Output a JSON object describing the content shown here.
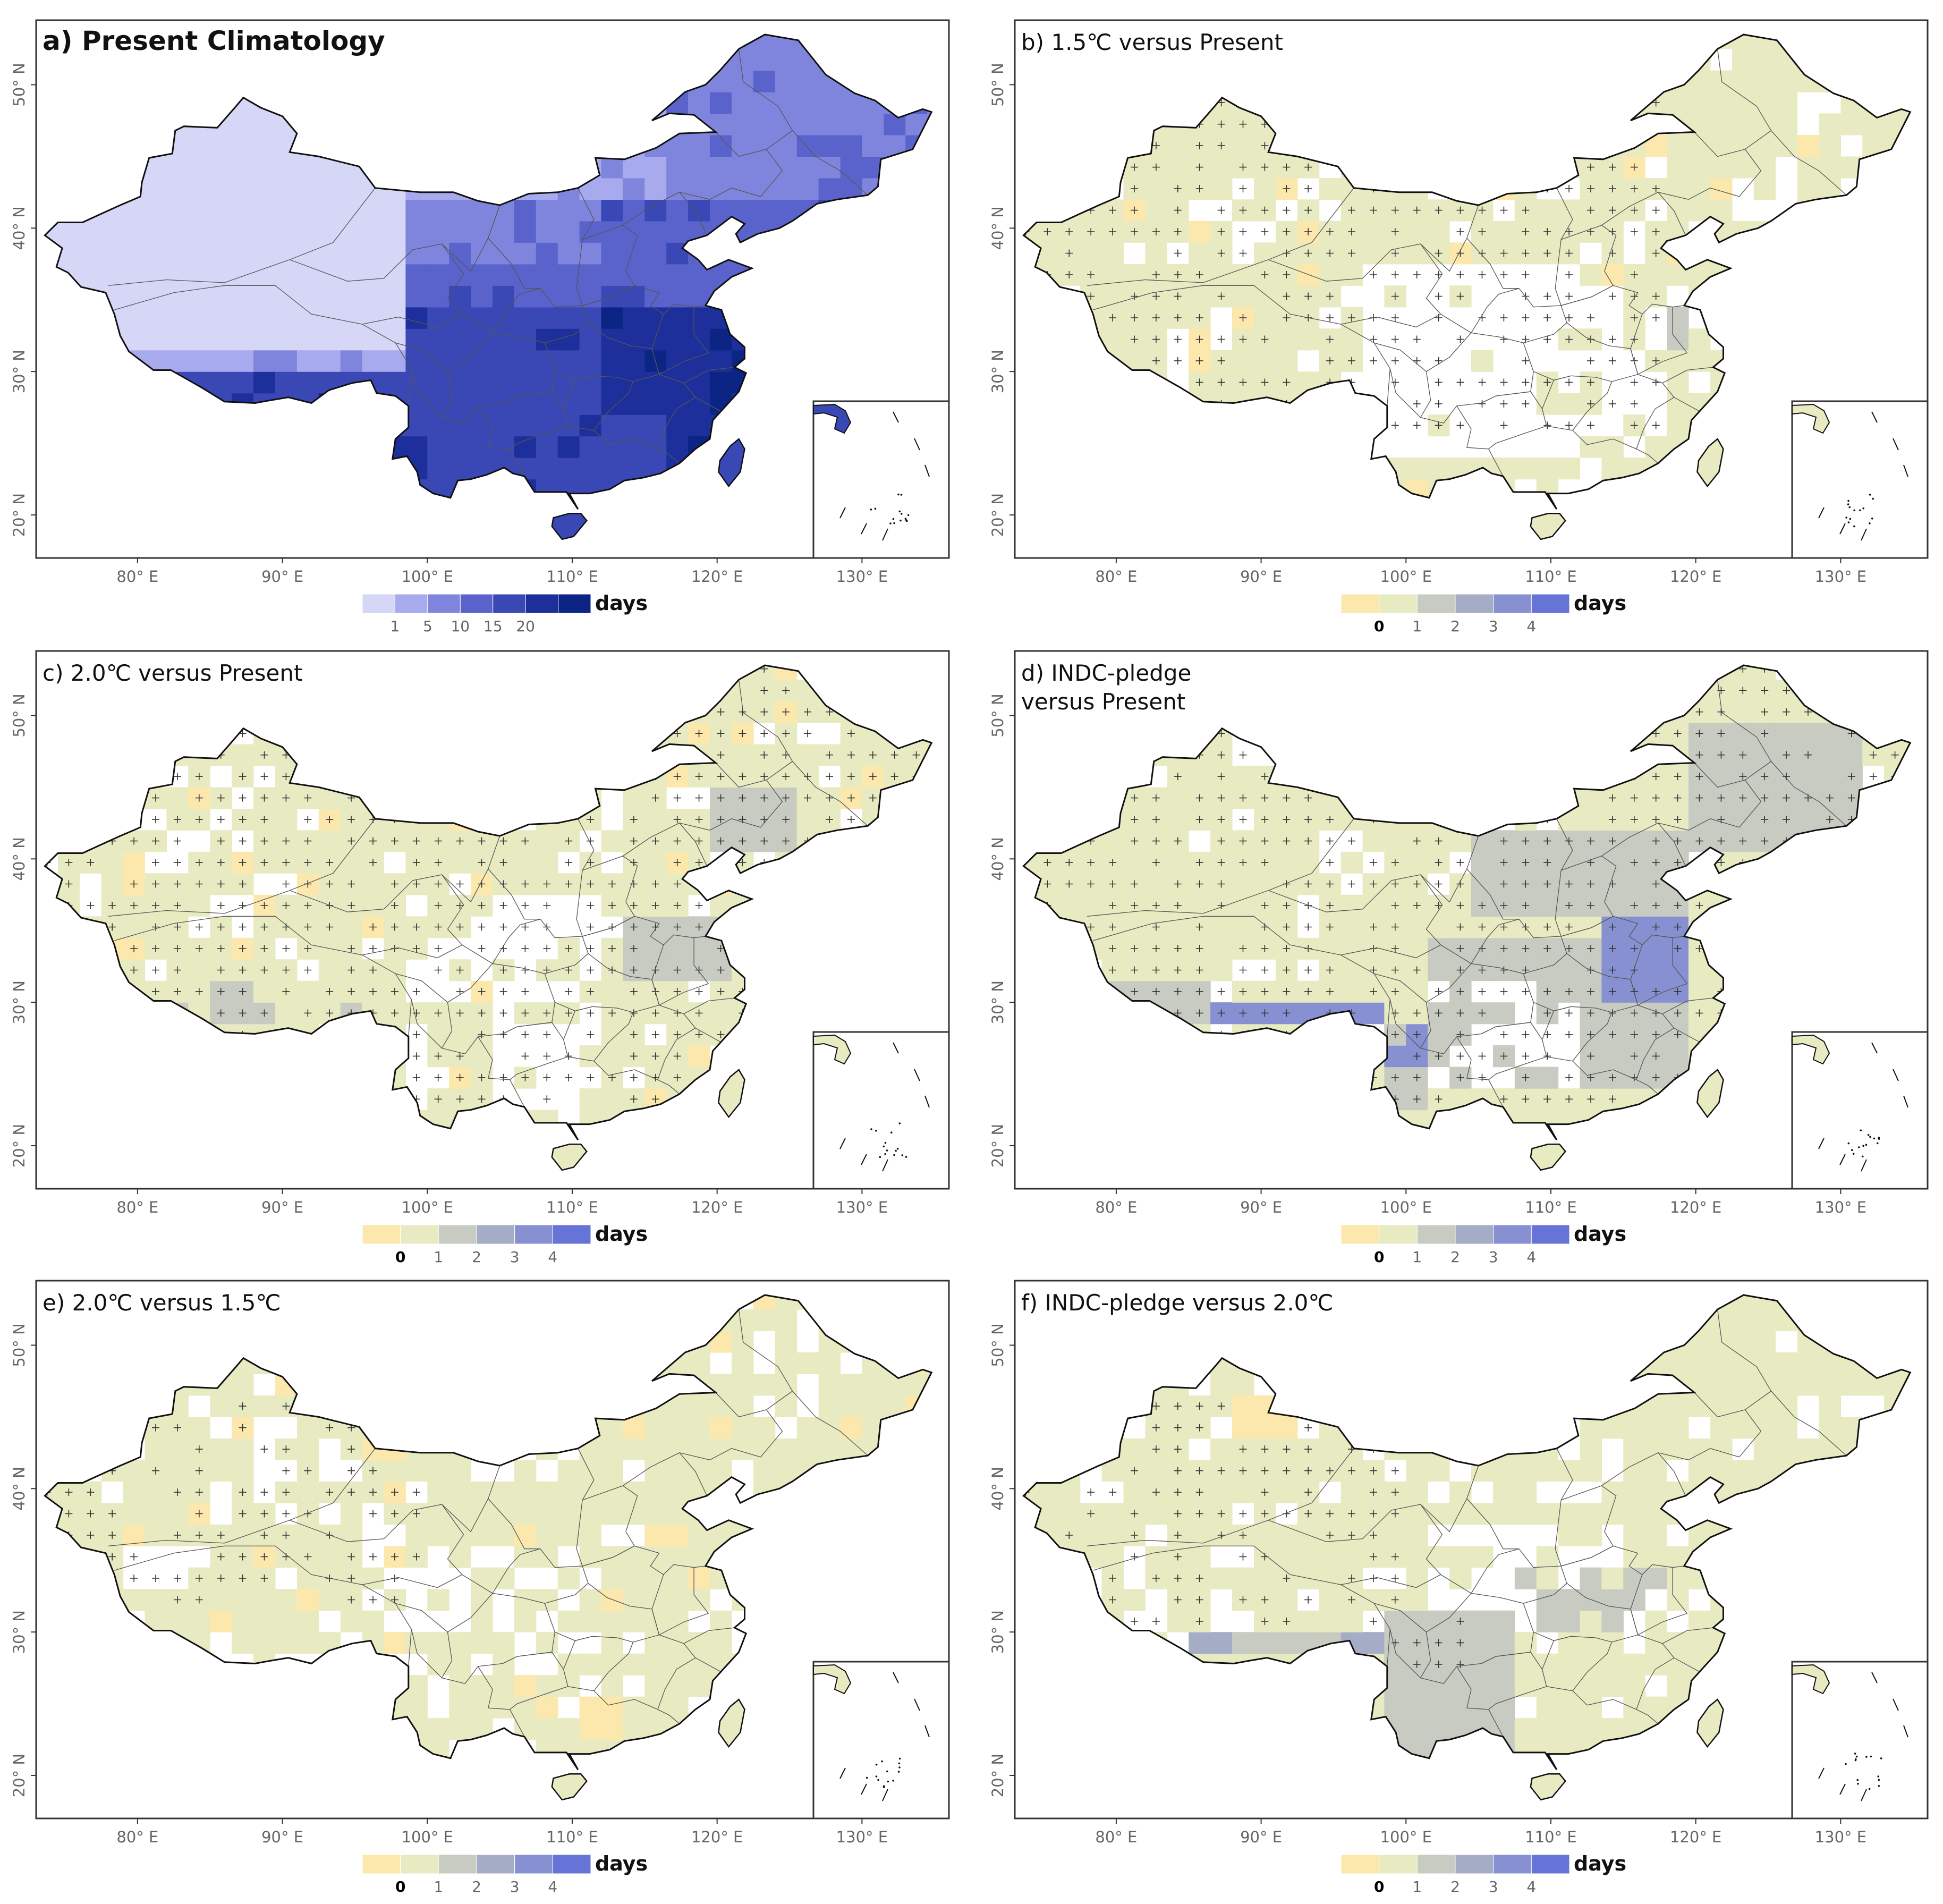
{
  "panels": [
    {
      "id": "a",
      "title": "a) Present Climatology",
      "title_bold": true,
      "scheme": "climatology",
      "legend": {
        "unit": "days",
        "colors": [
          "#d6d6f7",
          "#a8aaee",
          "#7f85dd",
          "#5a63cc",
          "#3a48b6",
          "#1d2f9a",
          "#0c2585"
        ],
        "labels": [
          "1",
          "5",
          "10",
          "15",
          "20"
        ],
        "bold_label_index": -1
      }
    },
    {
      "id": "b",
      "title": "b) 1.5℃ versus Present",
      "title_bold": false,
      "scheme": "change_b",
      "legend": {
        "unit": "days",
        "colors": [
          "#fce8ad",
          "#e8ebc2",
          "#c8cbc2",
          "#a5acc5",
          "#8791d2",
          "#6574d6"
        ],
        "labels": [
          "0",
          "1",
          "2",
          "3",
          "4"
        ],
        "bold_label_index": 0
      }
    },
    {
      "id": "c",
      "title": "c) 2.0℃ versus Present",
      "title_bold": false,
      "scheme": "change_c",
      "legend": {
        "unit": "days",
        "colors": [
          "#fce8ad",
          "#e8ebc2",
          "#c8cbc2",
          "#a5acc5",
          "#8791d2",
          "#6574d6"
        ],
        "labels": [
          "0",
          "1",
          "2",
          "3",
          "4"
        ],
        "bold_label_index": 0
      }
    },
    {
      "id": "d",
      "title": "d) INDC-pledge",
      "title2": "versus Present",
      "title_bold": false,
      "scheme": "change_d",
      "legend": {
        "unit": "days",
        "colors": [
          "#fce8ad",
          "#e8ebc2",
          "#c8cbc2",
          "#a5acc5",
          "#8791d2",
          "#6574d6"
        ],
        "labels": [
          "0",
          "1",
          "2",
          "3",
          "4"
        ],
        "bold_label_index": 0
      }
    },
    {
      "id": "e",
      "title": "e) 2.0℃ versus 1.5℃",
      "title_bold": false,
      "scheme": "change_e",
      "legend": {
        "unit": "days",
        "colors": [
          "#fce8ad",
          "#e8ebc2",
          "#c8cbc2",
          "#a5acc5",
          "#8791d2",
          "#6574d6"
        ],
        "labels": [
          "0",
          "1",
          "2",
          "3",
          "4"
        ],
        "bold_label_index": 0
      }
    },
    {
      "id": "f",
      "title": "f) INDC-pledge versus 2.0℃",
      "title_bold": false,
      "scheme": "change_f",
      "legend": {
        "unit": "days",
        "colors": [
          "#fce8ad",
          "#e8ebc2",
          "#c8cbc2",
          "#a5acc5",
          "#8791d2",
          "#6574d6"
        ],
        "labels": [
          "0",
          "1",
          "2",
          "3",
          "4"
        ],
        "bold_label_index": 0
      }
    }
  ],
  "axes": {
    "lon_ticks": [
      80,
      90,
      100,
      110,
      120,
      130
    ],
    "lon_tick_labels": [
      "80° E",
      "90° E",
      "100° E",
      "110° E",
      "120° E",
      "130° E"
    ],
    "lat_ticks": [
      20,
      30,
      40,
      50
    ],
    "lat_tick_labels": [
      "20° N",
      "30° N",
      "40° N",
      "50° N"
    ],
    "lon_range": [
      73,
      136
    ],
    "lat_range": [
      17,
      54.5
    ]
  },
  "colors": {
    "frame": "#333333",
    "border": "#111111",
    "province": "#555555",
    "tick_label": "#666666",
    "title": "#111111",
    "hatch": "#333333"
  }
}
